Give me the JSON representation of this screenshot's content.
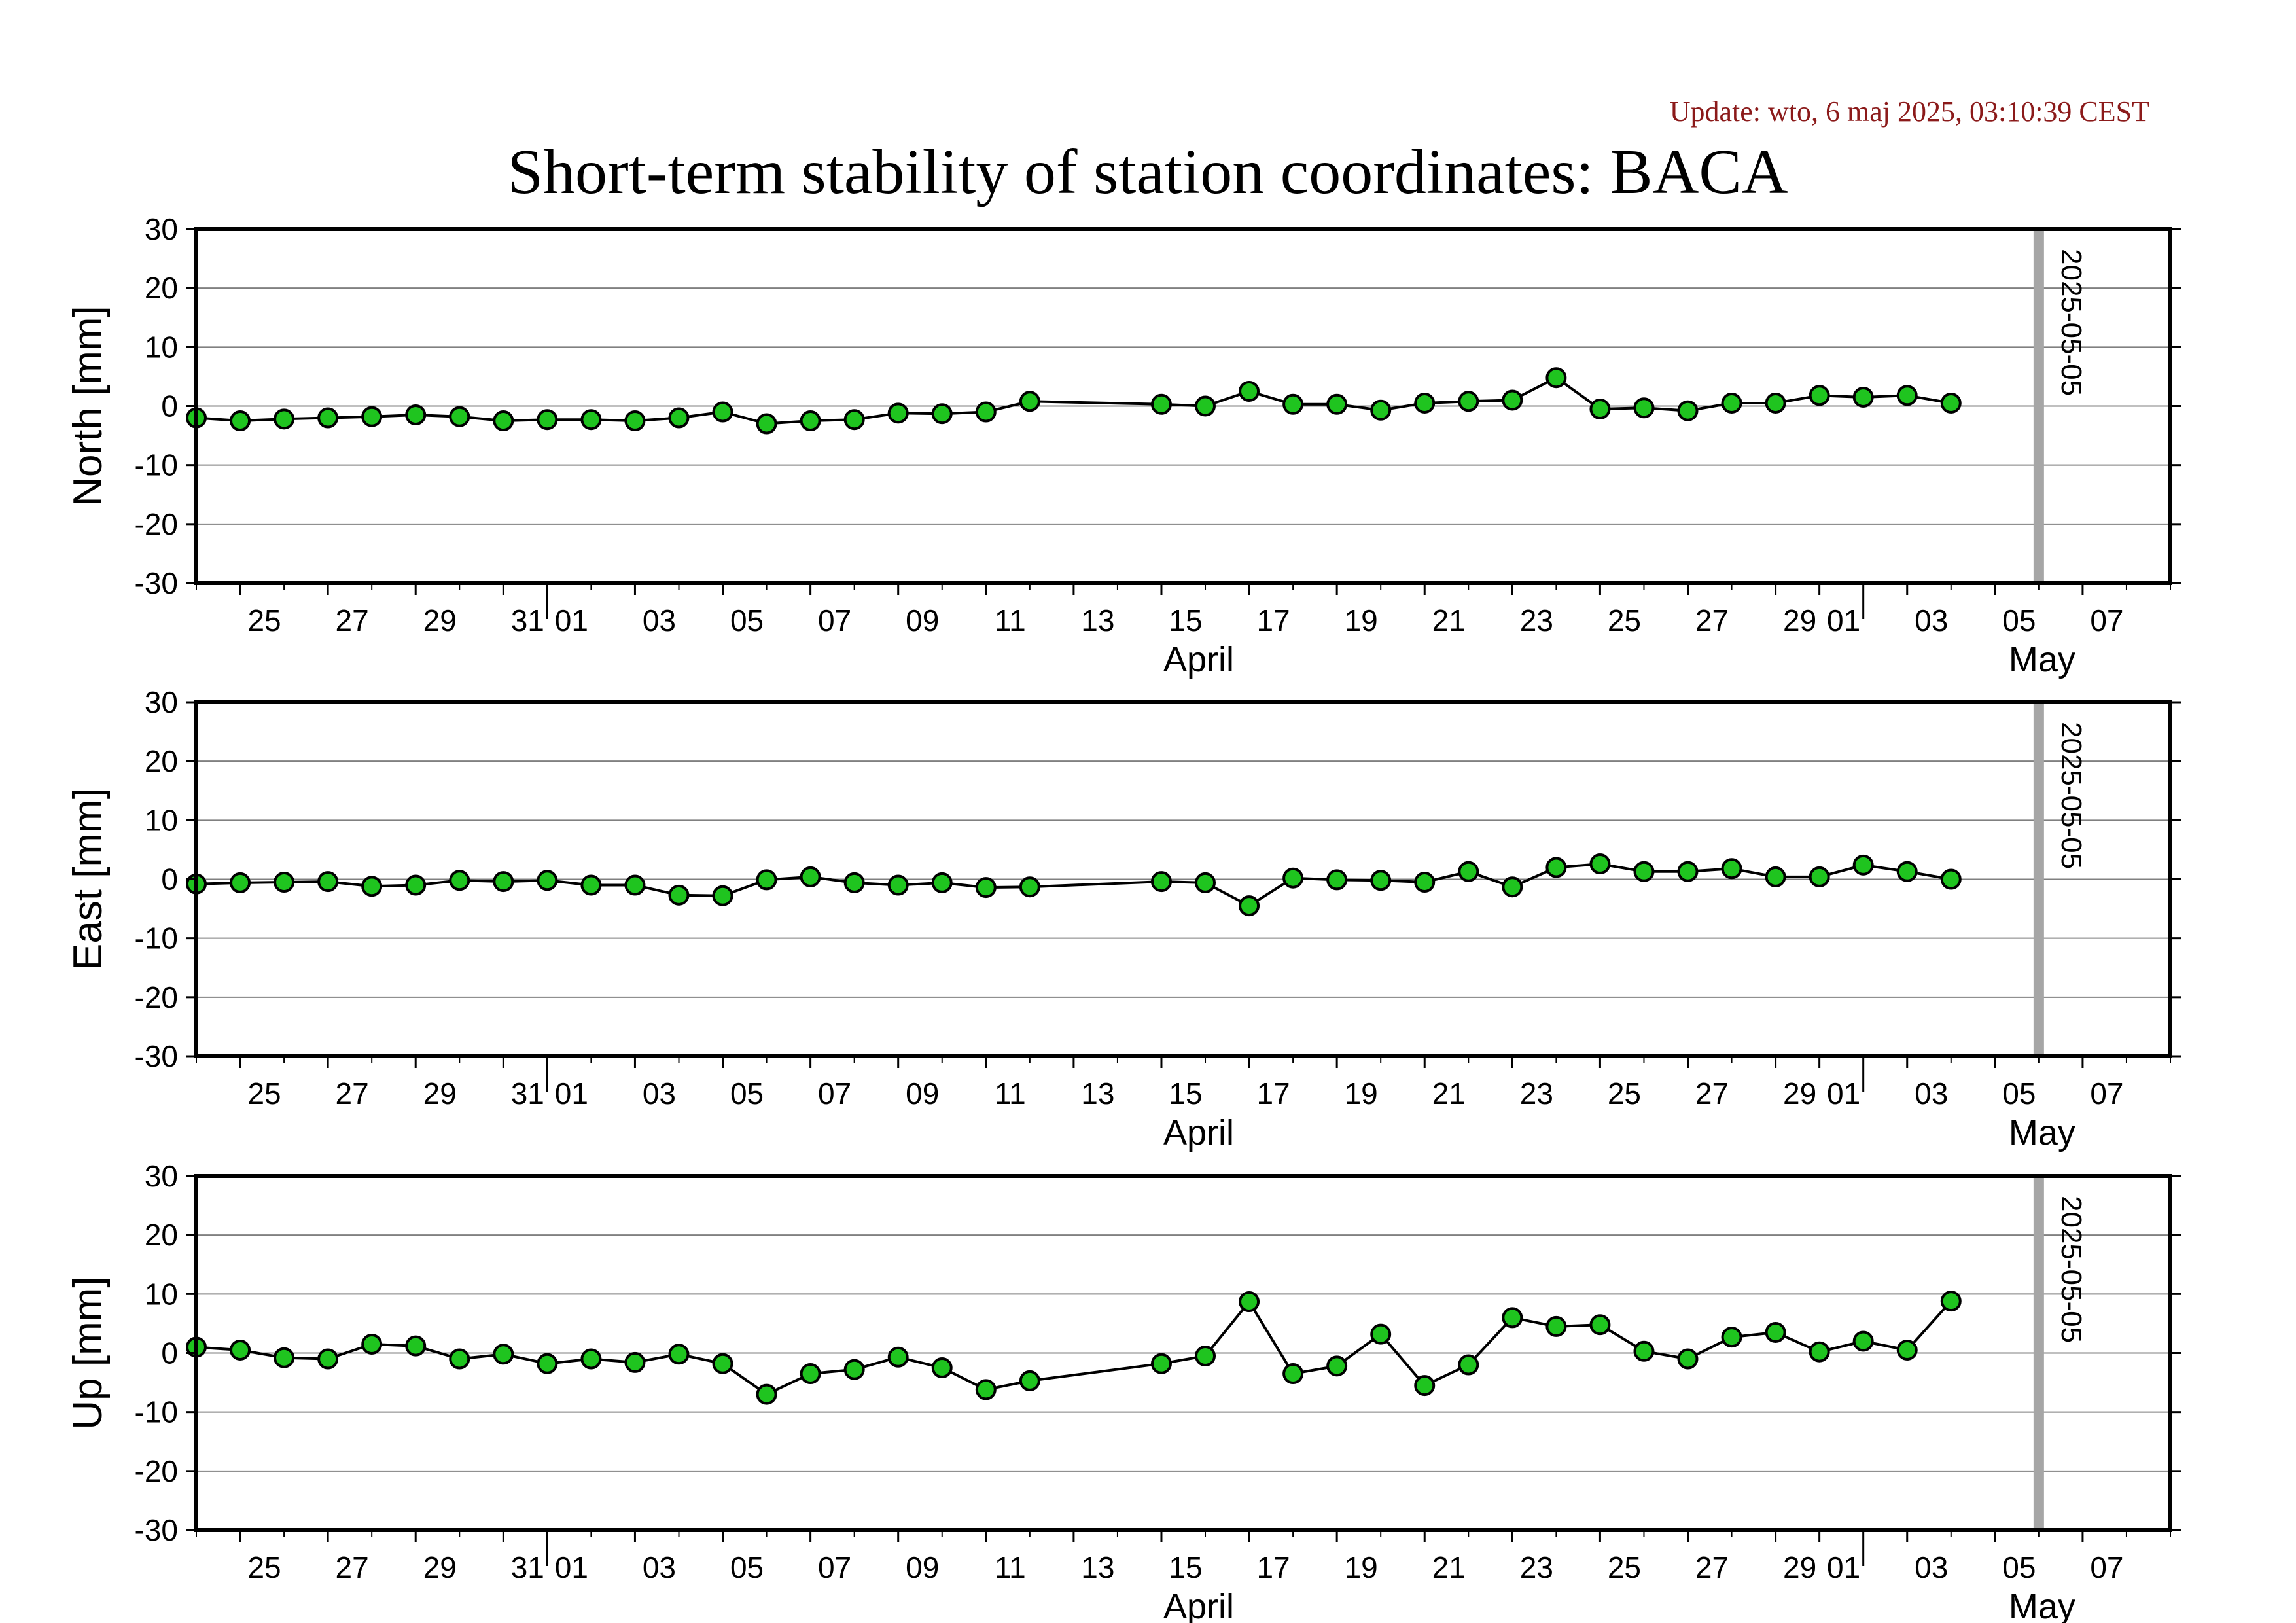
{
  "header": {
    "update": "Update: wto, 6 maj 2025, 03:10:39 CEST",
    "title": "Short-term stability of station coordinates: BACA"
  },
  "colors": {
    "point_fill": "#1fc41f",
    "point_stroke": "#000000",
    "line": "#000000",
    "grid": "#808080",
    "marker": "#a6a6a6",
    "update_text": "#8b1a1a"
  },
  "chart_data": [
    {
      "type": "line",
      "ylabel": "North [mm]",
      "ylim": [
        -30,
        30
      ],
      "yticks": [
        -30,
        -20,
        -10,
        0,
        10,
        20,
        30
      ],
      "xlim": [
        "2025-03-24",
        "2025-05-08"
      ],
      "x_tick_labels": [
        "25",
        "27",
        "29",
        "31",
        "01",
        "03",
        "05",
        "07",
        "09",
        "11",
        "13",
        "15",
        "17",
        "19",
        "21",
        "23",
        "25",
        "27",
        "29",
        "01",
        "03",
        "05",
        "07"
      ],
      "month_labels": [
        "April",
        "May"
      ],
      "marker_date": "2025-05-05",
      "grid": true,
      "x": [
        "2025-03-24",
        "2025-03-25",
        "2025-03-26",
        "2025-03-27",
        "2025-03-28",
        "2025-03-29",
        "2025-03-30",
        "2025-03-31",
        "2025-04-01",
        "2025-04-02",
        "2025-04-03",
        "2025-04-04",
        "2025-04-05",
        "2025-04-06",
        "2025-04-07",
        "2025-04-08",
        "2025-04-09",
        "2025-04-10",
        "2025-04-11",
        "2025-04-12",
        "2025-04-15",
        "2025-04-16",
        "2025-04-17",
        "2025-04-18",
        "2025-04-19",
        "2025-04-20",
        "2025-04-21",
        "2025-04-22",
        "2025-04-23",
        "2025-04-24",
        "2025-04-25",
        "2025-04-26",
        "2025-04-27",
        "2025-04-28",
        "2025-04-29",
        "2025-04-30",
        "2025-05-01",
        "2025-05-02",
        "2025-05-03"
      ],
      "y": [
        -2.0,
        -2.5,
        -2.2,
        -2.0,
        -1.8,
        -1.5,
        -1.8,
        -2.5,
        -2.3,
        -2.3,
        -2.5,
        -2.0,
        -1.0,
        -3.0,
        -2.5,
        -2.3,
        -1.2,
        -1.3,
        -1.0,
        0.8,
        0.3,
        0.0,
        2.5,
        0.3,
        0.3,
        -0.7,
        0.5,
        0.8,
        1.0,
        4.8,
        -0.5,
        -0.3,
        -0.8,
        0.5,
        0.5,
        1.8,
        1.5,
        1.8,
        0.5
      ]
    },
    {
      "type": "line",
      "ylabel": "East [mm]",
      "ylim": [
        -30,
        30
      ],
      "yticks": [
        -30,
        -20,
        -10,
        0,
        10,
        20,
        30
      ],
      "xlim": [
        "2025-03-24",
        "2025-05-08"
      ],
      "x_tick_labels": [
        "25",
        "27",
        "29",
        "31",
        "01",
        "03",
        "05",
        "07",
        "09",
        "11",
        "13",
        "15",
        "17",
        "19",
        "21",
        "23",
        "25",
        "27",
        "29",
        "01",
        "03",
        "05",
        "07"
      ],
      "month_labels": [
        "April",
        "May"
      ],
      "marker_date": "2025-05-05",
      "grid": true,
      "x": [
        "2025-03-24",
        "2025-03-25",
        "2025-03-26",
        "2025-03-27",
        "2025-03-28",
        "2025-03-29",
        "2025-03-30",
        "2025-03-31",
        "2025-04-01",
        "2025-04-02",
        "2025-04-03",
        "2025-04-04",
        "2025-04-05",
        "2025-04-06",
        "2025-04-07",
        "2025-04-08",
        "2025-04-09",
        "2025-04-10",
        "2025-04-11",
        "2025-04-12",
        "2025-04-15",
        "2025-04-16",
        "2025-04-17",
        "2025-04-18",
        "2025-04-19",
        "2025-04-20",
        "2025-04-21",
        "2025-04-22",
        "2025-04-23",
        "2025-04-24",
        "2025-04-25",
        "2025-04-26",
        "2025-04-27",
        "2025-04-28",
        "2025-04-29",
        "2025-04-30",
        "2025-05-01",
        "2025-05-02",
        "2025-05-03"
      ],
      "y": [
        -0.8,
        -0.6,
        -0.5,
        -0.4,
        -1.2,
        -1.0,
        -0.2,
        -0.4,
        -0.2,
        -1.0,
        -1.0,
        -2.7,
        -2.8,
        -0.1,
        0.4,
        -0.6,
        -1.0,
        -0.6,
        -1.4,
        -1.3,
        -0.4,
        -0.6,
        -4.5,
        0.2,
        -0.1,
        -0.2,
        -0.5,
        1.3,
        -1.3,
        2.0,
        2.6,
        1.3,
        1.3,
        1.8,
        0.4,
        0.4,
        2.4,
        1.3,
        0.0
      ]
    },
    {
      "type": "line",
      "ylabel": "Up [mm]",
      "ylim": [
        -30,
        30
      ],
      "yticks": [
        -30,
        -20,
        -10,
        0,
        10,
        20,
        30
      ],
      "xlim": [
        "2025-03-24",
        "2025-05-08"
      ],
      "x_tick_labels": [
        "25",
        "27",
        "29",
        "31",
        "01",
        "03",
        "05",
        "07",
        "09",
        "11",
        "13",
        "15",
        "17",
        "19",
        "21",
        "23",
        "25",
        "27",
        "29",
        "01",
        "03",
        "05",
        "07"
      ],
      "month_labels": [
        "April",
        "May"
      ],
      "marker_date": "2025-05-05",
      "grid": true,
      "x": [
        "2025-03-24",
        "2025-03-25",
        "2025-03-26",
        "2025-03-27",
        "2025-03-28",
        "2025-03-29",
        "2025-03-30",
        "2025-03-31",
        "2025-04-01",
        "2025-04-02",
        "2025-04-03",
        "2025-04-04",
        "2025-04-05",
        "2025-04-06",
        "2025-04-07",
        "2025-04-08",
        "2025-04-09",
        "2025-04-10",
        "2025-04-11",
        "2025-04-12",
        "2025-04-15",
        "2025-04-16",
        "2025-04-17",
        "2025-04-18",
        "2025-04-19",
        "2025-04-20",
        "2025-04-21",
        "2025-04-22",
        "2025-04-23",
        "2025-04-24",
        "2025-04-25",
        "2025-04-26",
        "2025-04-27",
        "2025-04-28",
        "2025-04-29",
        "2025-04-30",
        "2025-05-01",
        "2025-05-02",
        "2025-05-03"
      ],
      "y": [
        1.0,
        0.5,
        -0.8,
        -1.0,
        1.5,
        1.2,
        -1.0,
        -0.2,
        -1.8,
        -1.0,
        -1.6,
        -0.2,
        -1.8,
        -7.0,
        -3.5,
        -2.8,
        -0.7,
        -2.5,
        -6.2,
        -4.7,
        -1.8,
        -0.5,
        8.7,
        -3.5,
        -2.2,
        3.2,
        -5.5,
        -2.0,
        6.0,
        4.5,
        4.8,
        0.3,
        -1.0,
        2.7,
        3.5,
        0.2,
        2.0,
        0.5,
        8.8
      ]
    }
  ]
}
